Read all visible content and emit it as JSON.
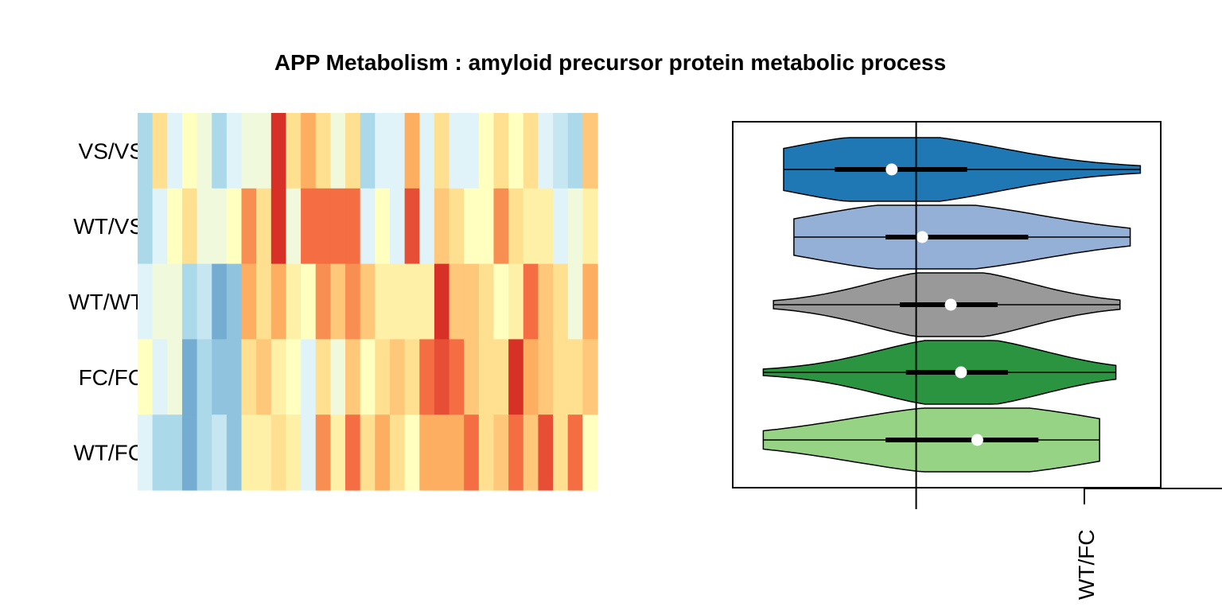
{
  "chart_data": [
    {
      "type": "heatmap",
      "title": "APP Metabolism : amyloid precursor protein metabolic process",
      "row_labels": [
        "VS/VS",
        "WT/VS",
        "WT/WT",
        "FC/FC",
        "WT/FC"
      ],
      "n_columns": 31,
      "color_scale": "RdYlBu (reversed): blue = low, yellow = mid, red = high",
      "values": [
        [
          -2,
          1,
          -1,
          0,
          -0.5,
          -2,
          -1,
          -0.5,
          -0.5,
          4,
          1,
          2,
          1,
          -0.5,
          1,
          -2,
          -1,
          -1,
          2,
          -1,
          1,
          -1,
          -1,
          0,
          1,
          0,
          1,
          -1,
          -1.5,
          -2,
          1.5
        ],
        [
          -2,
          -1,
          0,
          1,
          -0.5,
          -0.5,
          0,
          2.5,
          1,
          4,
          -0.5,
          3,
          3,
          3,
          3,
          -1,
          0,
          -1,
          3.5,
          -1,
          1.5,
          1,
          0,
          0,
          2.5,
          1,
          0.5,
          0.5,
          -1,
          -0.5,
          0.5
        ],
        [
          -1,
          -0.5,
          -0.5,
          -2,
          -1.5,
          -3,
          -2.5,
          2,
          1,
          2,
          0.5,
          0,
          2.5,
          1.5,
          2.5,
          1.5,
          0.5,
          0.5,
          0.5,
          0.5,
          4,
          1.5,
          1.5,
          1,
          0,
          0.5,
          3,
          1.5,
          1,
          -0.5,
          2
        ],
        [
          0,
          -1,
          -0.5,
          -3,
          -2,
          -2.5,
          -2.5,
          1,
          1.5,
          0.5,
          0,
          -1,
          1,
          -0.5,
          1.5,
          0,
          1,
          1.5,
          1,
          3,
          3.5,
          3,
          1.5,
          1,
          1,
          4,
          2,
          1.5,
          1,
          1,
          1.5
        ],
        [
          -1,
          -2,
          -2,
          -3,
          -2,
          -1.5,
          -2.5,
          0.5,
          0.5,
          1,
          0.5,
          -1,
          2.5,
          0.5,
          3,
          1,
          2,
          1,
          0,
          2,
          2,
          2,
          3,
          1,
          1.5,
          3,
          1.5,
          3.5,
          1,
          3,
          0
        ]
      ]
    },
    {
      "type": "violin",
      "series": [
        {
          "name": "VS/VS",
          "color": "#1f78b4",
          "min": -0.65,
          "q1": -0.4,
          "median": -0.12,
          "q3": 0.25,
          "max": 1.1
        },
        {
          "name": "WT/VS",
          "color": "#95b0d6",
          "min": -0.6,
          "q1": -0.15,
          "median": 0.03,
          "q3": 0.55,
          "max": 1.05
        },
        {
          "name": "WT/WT",
          "color": "#999999",
          "min": -0.7,
          "q1": -0.08,
          "median": 0.17,
          "q3": 0.4,
          "max": 1.0
        },
        {
          "name": "FC/FC",
          "color": "#2b9441",
          "min": -0.75,
          "q1": -0.05,
          "median": 0.22,
          "q3": 0.45,
          "max": 0.98
        },
        {
          "name": "WT/FC",
          "color": "#96d385",
          "min": -0.75,
          "q1": -0.15,
          "median": 0.3,
          "q3": 0.6,
          "max": 0.9
        }
      ],
      "reference_line": 0,
      "xlim": [
        -0.9,
        1.2
      ],
      "tick_labels": [
        "WT/FC"
      ]
    }
  ]
}
